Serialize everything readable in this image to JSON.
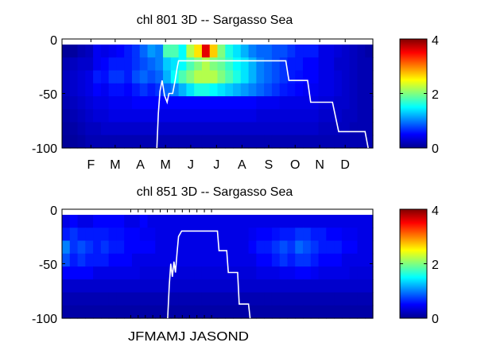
{
  "chart_data": [
    {
      "type": "heatmap",
      "title": "chl  801 3D   -- Sargasso Sea",
      "ylim": [
        -100,
        0
      ],
      "yticks": [
        "0",
        "-50",
        "-100"
      ],
      "xticks": [
        "F",
        "M",
        "A",
        "M",
        "J",
        "J",
        "A",
        "S",
        "O",
        "N",
        "D"
      ],
      "xtick_frac": [
        0.093,
        0.171,
        0.252,
        0.333,
        0.414,
        0.497,
        0.579,
        0.665,
        0.75,
        0.829,
        0.911
      ],
      "clim": [
        0,
        4
      ],
      "colorbar_ticks": [
        "4",
        "2",
        "0"
      ],
      "mld_line": [
        [
          0.305,
          -100
        ],
        [
          0.31,
          -68
        ],
        [
          0.315,
          -48
        ],
        [
          0.322,
          -38
        ],
        [
          0.33,
          -52
        ],
        [
          0.338,
          -58
        ],
        [
          0.344,
          -50
        ],
        [
          0.356,
          -50
        ],
        [
          0.364,
          -38
        ],
        [
          0.37,
          -27
        ],
        [
          0.375,
          -20
        ],
        [
          0.72,
          -20
        ],
        [
          0.73,
          -38
        ],
        [
          0.79,
          -38
        ],
        [
          0.8,
          -58
        ],
        [
          0.87,
          -58
        ],
        [
          0.89,
          -85
        ],
        [
          0.975,
          -85
        ],
        [
          0.985,
          -100
        ]
      ],
      "chl_grid": [
        [
          0.1,
          0.12,
          0.2,
          0.25,
          0.45,
          0.4,
          0.45,
          0.5,
          0.6,
          0.7,
          0.9,
          1.1,
          1.0,
          1.8,
          1.8,
          1.5,
          2.2,
          2.6,
          3.6,
          2.7,
          2.0,
          1.6,
          1.4,
          1.2,
          1.0,
          0.9,
          0.9,
          0.8,
          0.8,
          0.7,
          0.6,
          0.6,
          0.6,
          0.4,
          0.4,
          0.35,
          0.3,
          0.25,
          0.2,
          0.15
        ],
        [
          0.2,
          0.25,
          0.3,
          0.3,
          0.45,
          0.5,
          0.6,
          0.6,
          0.6,
          0.7,
          0.8,
          0.9,
          1.0,
          1.3,
          1.4,
          1.5,
          1.8,
          2.0,
          2.2,
          2.0,
          1.9,
          1.7,
          1.5,
          1.4,
          1.2,
          1.0,
          0.9,
          0.8,
          0.7,
          0.6,
          0.6,
          0.5,
          0.5,
          0.4,
          0.4,
          0.3,
          0.3,
          0.25,
          0.2,
          0.2
        ],
        [
          0.25,
          0.3,
          0.35,
          0.4,
          0.6,
          0.55,
          0.7,
          0.7,
          0.6,
          0.8,
          0.9,
          0.8,
          0.9,
          1.2,
          1.5,
          1.8,
          2.0,
          2.2,
          2.2,
          2.2,
          2.0,
          1.8,
          1.6,
          1.4,
          1.2,
          1.0,
          0.9,
          0.8,
          0.7,
          0.6,
          0.55,
          0.5,
          0.5,
          0.4,
          0.4,
          0.35,
          0.3,
          0.25,
          0.2,
          0.2
        ],
        [
          0.25,
          0.3,
          0.35,
          0.4,
          0.5,
          0.45,
          0.55,
          0.55,
          0.5,
          0.6,
          0.7,
          0.6,
          0.7,
          0.9,
          1.0,
          1.2,
          1.4,
          1.6,
          1.6,
          1.5,
          1.4,
          1.3,
          1.2,
          1.1,
          1.0,
          0.9,
          0.8,
          0.7,
          0.6,
          0.55,
          0.5,
          0.45,
          0.45,
          0.4,
          0.4,
          0.35,
          0.3,
          0.25,
          0.2,
          0.2
        ],
        [
          0.2,
          0.25,
          0.3,
          0.35,
          0.4,
          0.4,
          0.45,
          0.45,
          0.45,
          0.5,
          0.5,
          0.5,
          0.5,
          0.5,
          0.5,
          0.5,
          0.5,
          0.5,
          0.5,
          0.5,
          0.5,
          0.5,
          0.5,
          0.5,
          0.5,
          0.45,
          0.45,
          0.45,
          0.4,
          0.4,
          0.4,
          0.4,
          0.4,
          0.35,
          0.35,
          0.3,
          0.3,
          0.25,
          0.2,
          0.2
        ],
        [
          0.15,
          0.2,
          0.25,
          0.3,
          0.35,
          0.35,
          0.4,
          0.4,
          0.4,
          0.4,
          0.4,
          0.4,
          0.4,
          0.4,
          0.4,
          0.4,
          0.4,
          0.4,
          0.4,
          0.4,
          0.4,
          0.4,
          0.4,
          0.4,
          0.4,
          0.35,
          0.35,
          0.35,
          0.35,
          0.35,
          0.35,
          0.35,
          0.35,
          0.3,
          0.3,
          0.3,
          0.25,
          0.25,
          0.2,
          0.2
        ],
        [
          0.12,
          0.15,
          0.2,
          0.25,
          0.25,
          0.3,
          0.3,
          0.3,
          0.3,
          0.3,
          0.3,
          0.3,
          0.3,
          0.3,
          0.3,
          0.3,
          0.3,
          0.3,
          0.3,
          0.3,
          0.3,
          0.3,
          0.3,
          0.3,
          0.3,
          0.3,
          0.3,
          0.3,
          0.3,
          0.3,
          0.3,
          0.3,
          0.3,
          0.25,
          0.25,
          0.25,
          0.25,
          0.2,
          0.2,
          0.2
        ],
        [
          0.1,
          0.12,
          0.15,
          0.2,
          0.2,
          0.2,
          0.2,
          0.2,
          0.2,
          0.2,
          0.2,
          0.2,
          0.2,
          0.2,
          0.2,
          0.2,
          0.2,
          0.2,
          0.2,
          0.2,
          0.2,
          0.2,
          0.2,
          0.2,
          0.2,
          0.2,
          0.2,
          0.2,
          0.2,
          0.2,
          0.2,
          0.2,
          0.2,
          0.2,
          0.2,
          0.2,
          0.2,
          0.2,
          0.2,
          0.2
        ]
      ]
    },
    {
      "type": "heatmap",
      "title": "chl  851 3D   -- Sargasso Sea",
      "ylim": [
        -100,
        0
      ],
      "yticks": [
        "0",
        "-50",
        "-100"
      ],
      "xtick_text": "JFMAMJ JASOND",
      "xtick_count": 12,
      "xtick_frac": [
        0.221,
        0.245,
        0.268,
        0.292,
        0.316,
        0.339,
        0.363,
        0.387,
        0.41,
        0.434,
        0.458,
        0.481
      ],
      "clim": [
        0,
        4
      ],
      "colorbar_ticks": [
        "4",
        "2",
        "0"
      ],
      "mld_line": [
        [
          0.34,
          -100
        ],
        [
          0.345,
          -70
        ],
        [
          0.35,
          -50
        ],
        [
          0.355,
          -62
        ],
        [
          0.36,
          -48
        ],
        [
          0.365,
          -58
        ],
        [
          0.37,
          -40
        ],
        [
          0.375,
          -25
        ],
        [
          0.385,
          -20
        ],
        [
          0.5,
          -20
        ],
        [
          0.505,
          -38
        ],
        [
          0.53,
          -38
        ],
        [
          0.535,
          -58
        ],
        [
          0.565,
          -58
        ],
        [
          0.57,
          -87
        ],
        [
          0.6,
          -87
        ],
        [
          0.605,
          -100
        ]
      ],
      "chl_grid": [
        [
          0.4,
          0.5,
          0.4,
          0.4,
          0.5,
          0.5,
          0.5,
          0.5,
          0.4,
          0.4,
          0.5,
          0.4,
          0.4,
          0.4,
          0.4,
          0.4,
          0.4,
          0.4,
          0.4,
          0.4,
          0.4,
          0.4,
          0.4,
          0.4,
          0.4,
          0.4,
          0.4,
          0.4,
          0.4,
          0.4,
          0.4,
          0.4,
          0.4,
          0.4,
          0.4,
          0.4,
          0.4,
          0.4,
          0.4,
          0.4
        ],
        [
          0.6,
          0.7,
          0.6,
          0.6,
          0.6,
          0.6,
          0.55,
          0.55,
          0.5,
          0.5,
          0.45,
          0.45,
          0.4,
          0.4,
          0.4,
          0.4,
          0.4,
          0.4,
          0.4,
          0.4,
          0.4,
          0.4,
          0.4,
          0.4,
          0.45,
          0.5,
          0.5,
          0.55,
          0.6,
          0.6,
          0.7,
          0.7,
          0.6,
          0.6,
          0.5,
          0.5,
          0.45,
          0.45,
          0.4,
          0.4
        ],
        [
          1.0,
          0.7,
          0.8,
          0.7,
          0.6,
          0.7,
          0.6,
          0.6,
          0.5,
          0.5,
          0.5,
          0.5,
          0.4,
          0.4,
          0.4,
          0.4,
          0.4,
          0.4,
          0.4,
          0.4,
          0.4,
          0.4,
          0.4,
          0.4,
          0.5,
          0.6,
          0.6,
          0.7,
          0.8,
          0.7,
          0.9,
          0.8,
          0.7,
          0.6,
          0.6,
          0.6,
          0.5,
          0.5,
          0.4,
          0.4
        ],
        [
          0.8,
          0.6,
          0.7,
          0.6,
          0.6,
          0.6,
          0.5,
          0.5,
          0.5,
          0.4,
          0.4,
          0.4,
          0.4,
          0.4,
          0.4,
          0.4,
          0.4,
          0.4,
          0.4,
          0.4,
          0.4,
          0.4,
          0.4,
          0.4,
          0.4,
          0.5,
          0.5,
          0.6,
          0.7,
          0.6,
          0.7,
          0.7,
          0.6,
          0.5,
          0.5,
          0.5,
          0.4,
          0.4,
          0.4,
          0.4
        ],
        [
          0.5,
          0.5,
          0.5,
          0.5,
          0.4,
          0.4,
          0.4,
          0.4,
          0.4,
          0.4,
          0.35,
          0.35,
          0.35,
          0.35,
          0.35,
          0.35,
          0.35,
          0.35,
          0.35,
          0.35,
          0.35,
          0.35,
          0.35,
          0.35,
          0.35,
          0.4,
          0.4,
          0.4,
          0.45,
          0.45,
          0.5,
          0.5,
          0.45,
          0.4,
          0.4,
          0.4,
          0.4,
          0.35,
          0.35,
          0.35
        ],
        [
          0.3,
          0.3,
          0.3,
          0.3,
          0.3,
          0.3,
          0.3,
          0.3,
          0.3,
          0.3,
          0.3,
          0.3,
          0.3,
          0.3,
          0.3,
          0.3,
          0.3,
          0.3,
          0.3,
          0.3,
          0.3,
          0.3,
          0.3,
          0.3,
          0.3,
          0.3,
          0.3,
          0.3,
          0.3,
          0.3,
          0.3,
          0.3,
          0.3,
          0.3,
          0.3,
          0.3,
          0.3,
          0.3,
          0.3,
          0.3
        ],
        [
          0.2,
          0.2,
          0.2,
          0.2,
          0.2,
          0.2,
          0.2,
          0.2,
          0.2,
          0.2,
          0.2,
          0.2,
          0.2,
          0.2,
          0.2,
          0.2,
          0.2,
          0.2,
          0.2,
          0.2,
          0.2,
          0.2,
          0.2,
          0.2,
          0.2,
          0.2,
          0.2,
          0.2,
          0.2,
          0.2,
          0.2,
          0.2,
          0.2,
          0.2,
          0.2,
          0.2,
          0.2,
          0.2,
          0.2,
          0.2
        ],
        [
          0.15,
          0.15,
          0.15,
          0.15,
          0.15,
          0.15,
          0.15,
          0.15,
          0.15,
          0.15,
          0.15,
          0.15,
          0.15,
          0.15,
          0.15,
          0.15,
          0.15,
          0.15,
          0.15,
          0.15,
          0.15,
          0.15,
          0.15,
          0.15,
          0.15,
          0.15,
          0.15,
          0.15,
          0.15,
          0.15,
          0.15,
          0.15,
          0.15,
          0.15,
          0.15,
          0.15,
          0.15,
          0.15,
          0.15,
          0.15
        ]
      ]
    }
  ]
}
